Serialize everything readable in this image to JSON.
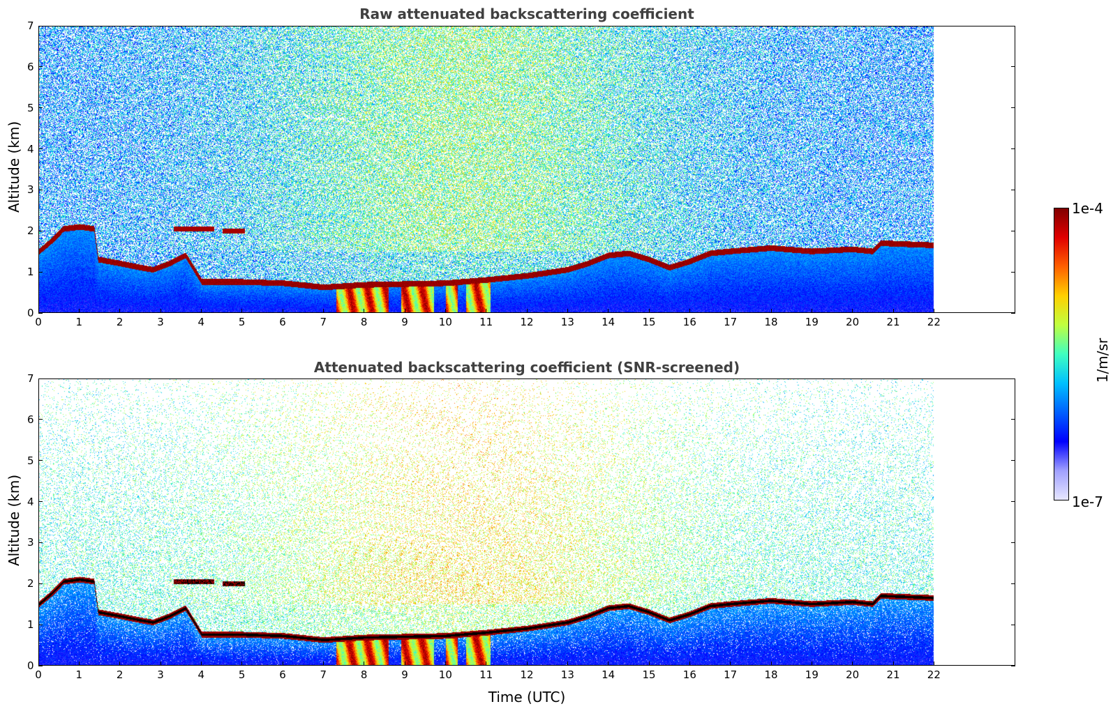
{
  "chart_data": [
    {
      "type": "heatmap",
      "title": "Raw attenuated backscattering coefficient",
      "xlabel": "",
      "ylabel": "Altitude (km)",
      "xlim": [
        0,
        24
      ],
      "ylim": [
        0,
        7
      ],
      "xticks": [
        "0",
        "1",
        "2",
        "3",
        "4",
        "5",
        "6",
        "7",
        "8",
        "9",
        "10",
        "11",
        "12",
        "13",
        "14",
        "15",
        "16",
        "17",
        "18",
        "19",
        "20",
        "21",
        "22"
      ],
      "yticks": [
        "0",
        "1",
        "2",
        "3",
        "4",
        "5",
        "6",
        "7"
      ],
      "data_end_time": 22,
      "screened": false
    },
    {
      "type": "heatmap",
      "title": "Attenuated backscattering coefficient (SNR-screened)",
      "xlabel": "Time (UTC)",
      "ylabel": "Altitude (km)",
      "xlim": [
        0,
        24
      ],
      "ylim": [
        0,
        7
      ],
      "xticks": [
        "0",
        "1",
        "2",
        "3",
        "4",
        "5",
        "6",
        "7",
        "8",
        "9",
        "10",
        "11",
        "12",
        "13",
        "14",
        "15",
        "16",
        "17",
        "18",
        "19",
        "20",
        "21",
        "22"
      ],
      "yticks": [
        "0",
        "1",
        "2",
        "3",
        "4",
        "5",
        "6",
        "7"
      ],
      "data_end_time": 22,
      "screened": true
    }
  ],
  "layer_top": [
    [
      0.0,
      1.5
    ],
    [
      0.3,
      1.75
    ],
    [
      0.6,
      2.05
    ],
    [
      1.0,
      2.1
    ],
    [
      1.35,
      2.05
    ],
    [
      1.45,
      1.3
    ],
    [
      2.0,
      1.2
    ],
    [
      2.5,
      1.1
    ],
    [
      2.8,
      1.05
    ],
    [
      3.2,
      1.2
    ],
    [
      3.6,
      1.4
    ],
    [
      4.0,
      0.75
    ],
    [
      5.0,
      0.75
    ],
    [
      6.0,
      0.72
    ],
    [
      7.0,
      0.62
    ],
    [
      8.0,
      0.68
    ],
    [
      9.0,
      0.7
    ],
    [
      10.0,
      0.72
    ],
    [
      11.0,
      0.8
    ],
    [
      12.0,
      0.9
    ],
    [
      13.0,
      1.05
    ],
    [
      13.5,
      1.2
    ],
    [
      14.0,
      1.4
    ],
    [
      14.5,
      1.45
    ],
    [
      15.0,
      1.3
    ],
    [
      15.5,
      1.1
    ],
    [
      16.0,
      1.25
    ],
    [
      16.5,
      1.45
    ],
    [
      17.0,
      1.5
    ],
    [
      18.0,
      1.58
    ],
    [
      19.0,
      1.5
    ],
    [
      20.0,
      1.55
    ],
    [
      20.5,
      1.5
    ],
    [
      20.7,
      1.7
    ],
    [
      22.0,
      1.65
    ]
  ],
  "cloud_segments": [
    {
      "t0": 3.3,
      "t1": 4.3,
      "alt": 2.05
    },
    {
      "t0": 4.5,
      "t1": 5.05,
      "alt": 2.0
    }
  ],
  "intense_periods": [
    {
      "t0": 7.3,
      "t1": 8.6
    },
    {
      "t0": 8.9,
      "t1": 9.7
    },
    {
      "t0": 10.0,
      "t1": 10.3
    },
    {
      "t0": 10.5,
      "t1": 11.1
    }
  ],
  "colorbar": {
    "max_label": "1e-4",
    "min_label": "1e-7",
    "unit": "1/m/sr",
    "scale": "log",
    "colormap": [
      "#e6e6ff",
      "#a0a0ff",
      "#0000ff",
      "#0060ff",
      "#00c0ff",
      "#40ffc0",
      "#c0ff40",
      "#ffd000",
      "#ff6000",
      "#e00000",
      "#800000"
    ]
  }
}
